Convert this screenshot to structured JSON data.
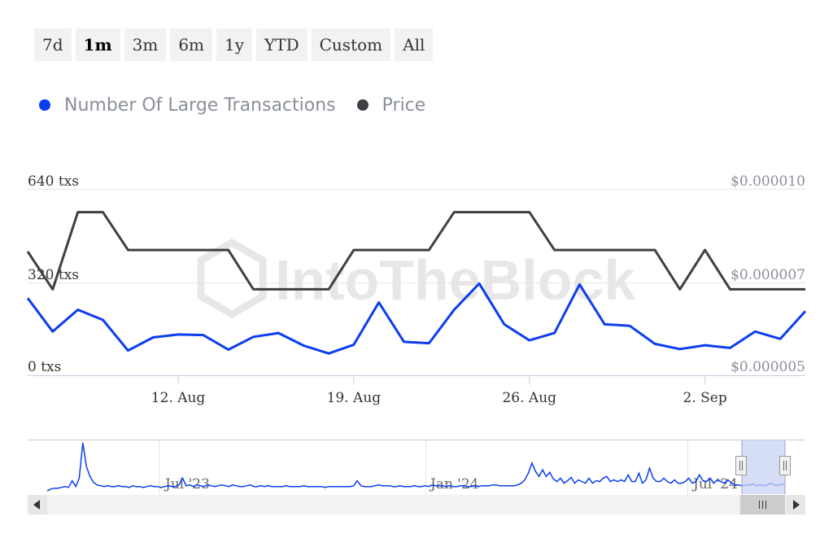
{
  "range_buttons": [
    "7d",
    "1m",
    "3m",
    "6m",
    "1y",
    "YTD",
    "Custom",
    "All"
  ],
  "active_range": "1m",
  "legend": [
    {
      "label": "Number Of Large Transactions",
      "color": "#0c3df0"
    },
    {
      "label": "Price",
      "color": "#3d4145"
    }
  ],
  "watermark": "IntoTheBlock",
  "chart_data": {
    "type": "line",
    "x_labels": [
      "12. Aug",
      "19. Aug",
      "26. Aug",
      "2. Sep"
    ],
    "x_label_index": [
      6,
      13,
      20,
      27
    ],
    "left_axis": {
      "labels": [
        "640 txs",
        "320 txs",
        "0 txs"
      ],
      "min": 0,
      "max": 640
    },
    "right_axis": {
      "labels": [
        "$0.000010",
        "$0.000007",
        "$0.000005"
      ],
      "min": 5e-06,
      "max": 1e-05
    },
    "series": [
      {
        "name": "Number Of Large Transactions",
        "axis": "left",
        "color": "#0c3df0",
        "values": [
          265,
          150,
          225,
          190,
          85,
          130,
          140,
          138,
          88,
          132,
          145,
          102,
          75,
          105,
          250,
          115,
          110,
          225,
          315,
          175,
          120,
          145,
          312,
          175,
          170,
          108,
          90,
          103,
          94,
          150,
          125,
          220
        ]
      },
      {
        "name": "Price",
        "axis": "left",
        "color": "#3d4145",
        "values": [
          425,
          295,
          560,
          560,
          430,
          430,
          430,
          430,
          430,
          295,
          295,
          295,
          295,
          430,
          430,
          430,
          430,
          560,
          560,
          560,
          560,
          430,
          430,
          430,
          430,
          430,
          295,
          430,
          295,
          295,
          295,
          295
        ]
      }
    ]
  },
  "navigator": {
    "x_labels": [
      "Jul '23",
      "Jan '24",
      "Jul '24"
    ],
    "values": [
      3,
      5,
      6,
      6,
      7,
      8,
      7,
      15,
      8,
      18,
      60,
      32,
      20,
      13,
      10,
      9,
      8,
      9,
      8,
      8,
      9,
      8,
      8,
      7,
      9,
      8,
      8,
      7,
      8,
      9,
      8,
      8,
      7,
      8,
      9,
      8,
      8,
      10,
      18,
      9,
      10,
      8,
      10,
      9,
      8,
      10,
      9,
      8,
      9,
      10,
      9,
      8,
      10,
      9,
      8,
      8,
      9,
      10,
      8,
      8,
      9,
      8,
      9,
      8,
      8,
      8,
      8,
      9,
      8,
      8,
      8,
      8,
      9,
      8,
      8,
      8,
      8,
      8,
      7,
      8,
      8,
      8,
      8,
      8,
      8,
      8,
      9,
      15,
      9,
      8,
      8,
      8,
      9,
      10,
      9,
      9,
      9,
      8,
      8,
      9,
      8,
      8,
      8,
      9,
      8,
      8,
      9,
      8,
      10,
      9,
      9,
      9,
      8,
      9,
      8,
      8,
      9,
      9,
      8,
      8,
      9,
      8,
      9,
      9,
      9,
      10,
      10,
      9,
      9,
      9,
      9,
      9,
      10,
      12,
      16,
      24,
      36,
      26,
      20,
      28,
      20,
      25,
      17,
      14,
      18,
      12,
      15,
      19,
      12,
      16,
      14,
      12,
      18,
      12,
      15,
      14,
      18,
      20,
      14,
      16,
      14,
      16,
      14,
      22,
      14,
      14,
      24,
      12,
      16,
      30,
      18,
      14,
      14,
      18,
      14,
      12,
      16,
      12,
      12,
      14,
      18,
      12,
      14,
      22,
      15,
      14,
      18,
      12,
      16,
      14,
      12,
      16,
      12,
      10,
      10,
      9,
      10,
      10,
      11,
      9,
      10,
      9,
      10,
      12,
      10,
      9,
      11,
      10
    ]
  }
}
